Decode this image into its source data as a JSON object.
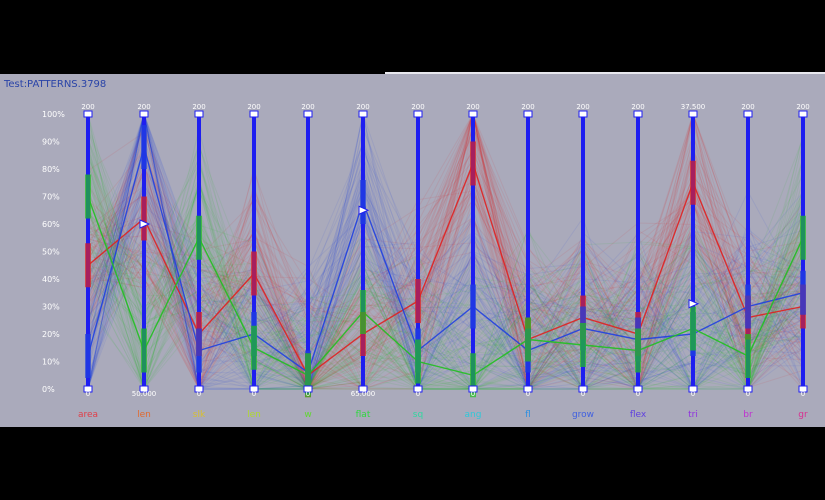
{
  "window": {
    "title": "Test:PATTERNS.3798"
  },
  "chart_data": {
    "type": "parallel-coordinates",
    "y_ticks": [
      "100%",
      "90%",
      "80%",
      "70%",
      "60%",
      "50%",
      "40%",
      "30%",
      "20%",
      "10%",
      "0%"
    ],
    "axes": [
      {
        "label": "area",
        "color": "#e0404a",
        "top": "200",
        "bottom": "0"
      },
      {
        "label": "len",
        "color": "#e06a30",
        "top": "200",
        "bottom": "50.000"
      },
      {
        "label": "slk",
        "color": "#d8c030",
        "top": "200",
        "bottom": "0"
      },
      {
        "label": "len",
        "color": "#b0d830",
        "top": "200",
        "bottom": "0"
      },
      {
        "label": "w",
        "color": "#60d830",
        "top": "200",
        "bottom": "0"
      },
      {
        "label": "flat",
        "color": "#30d840",
        "top": "200",
        "bottom": "65.000"
      },
      {
        "label": "sq",
        "color": "#30d8a0",
        "top": "200",
        "bottom": "0"
      },
      {
        "label": "ang",
        "color": "#30c8d8",
        "top": "200",
        "bottom": "0"
      },
      {
        "label": "fl",
        "color": "#3090e0",
        "top": "200",
        "bottom": "0"
      },
      {
        "label": "grow",
        "color": "#4060e0",
        "top": "200",
        "bottom": "0"
      },
      {
        "label": "flex",
        "color": "#6040e0",
        "top": "200",
        "bottom": "0"
      },
      {
        "label": "tri",
        "color": "#9030e0",
        "top": "37.500",
        "bottom": "0"
      },
      {
        "label": "br",
        "color": "#c030d0",
        "top": "200",
        "bottom": "0"
      },
      {
        "label": "gr",
        "color": "#d83090",
        "top": "200",
        "bottom": "0"
      }
    ],
    "series": [
      {
        "color": "#e02020",
        "values": [
          0.45,
          0.62,
          0.2,
          0.42,
          0.05,
          0.2,
          0.32,
          0.82,
          0.18,
          0.26,
          0.2,
          0.75,
          0.26,
          0.3
        ]
      },
      {
        "color": "#2040e0",
        "values": [
          0.12,
          0.88,
          0.14,
          0.2,
          0.06,
          0.68,
          0.14,
          0.3,
          0.14,
          0.22,
          0.18,
          0.2,
          0.3,
          0.35
        ]
      },
      {
        "color": "#20c020",
        "values": [
          0.7,
          0.14,
          0.55,
          0.15,
          0.05,
          0.28,
          0.1,
          0.05,
          0.18,
          0.16,
          0.14,
          0.22,
          0.12,
          0.55
        ]
      }
    ]
  }
}
